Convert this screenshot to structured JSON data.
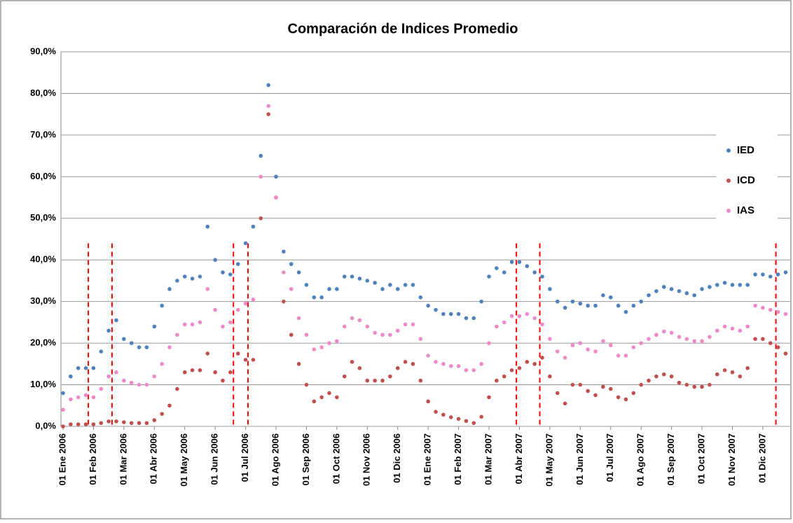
{
  "chart_data": {
    "type": "scatter",
    "title": "Comparación de Indices Promedio",
    "x": [
      0,
      0.25,
      0.5,
      0.75,
      1,
      1.25,
      1.5,
      1.75,
      2,
      2.25,
      2.5,
      2.75,
      3,
      3.25,
      3.5,
      3.75,
      4,
      4.25,
      4.5,
      4.75,
      5,
      5.25,
      5.5,
      5.75,
      6,
      6.25,
      6.5,
      6.75,
      7,
      7.25,
      7.5,
      7.75,
      8,
      8.25,
      8.5,
      8.75,
      9,
      9.25,
      9.5,
      9.75,
      10,
      10.25,
      10.5,
      10.75,
      11,
      11.25,
      11.5,
      11.75,
      12,
      12.25,
      12.5,
      12.75,
      13,
      13.25,
      13.5,
      13.75,
      14,
      14.25,
      14.5,
      14.75,
      15,
      15.25,
      15.5,
      15.75,
      16,
      16.25,
      16.5,
      16.75,
      17,
      17.25,
      17.5,
      17.75,
      18,
      18.25,
      18.5,
      18.75,
      19,
      19.25,
      19.5,
      19.75,
      20,
      20.25,
      20.5,
      20.75,
      21,
      21.25,
      21.5,
      21.75,
      22,
      22.25,
      22.5,
      22.75,
      23,
      23.25,
      23.5,
      23.75
    ],
    "series": [
      {
        "name": "IED",
        "color": "#4f81bd",
        "values": [
          8,
          12,
          14,
          14,
          14,
          18,
          23,
          25.5,
          21,
          20,
          19,
          19,
          24,
          29,
          33,
          35,
          36,
          35.5,
          36,
          48,
          40,
          37,
          36.5,
          39,
          44,
          48,
          65,
          82,
          60,
          42,
          39,
          37,
          34,
          31,
          31,
          33,
          33,
          36,
          36,
          35.5,
          35,
          34.5,
          33,
          34,
          33,
          34,
          34,
          31,
          29,
          28,
          27,
          27,
          27,
          26,
          26,
          30,
          36,
          38,
          37,
          39.5,
          39.5,
          38.5,
          37,
          36,
          33,
          30,
          28.5,
          30,
          29.5,
          29,
          29,
          31.5,
          31,
          29,
          27.5,
          29,
          30,
          31.5,
          32.5,
          33.5,
          33,
          32.5,
          32,
          31.5,
          33,
          33.5,
          34,
          34.5,
          34,
          34,
          34,
          36.5,
          36.5,
          36,
          36.5,
          37
        ]
      },
      {
        "name": "ICD",
        "color": "#c0504d",
        "values": [
          0,
          0.5,
          0.5,
          0.5,
          0.5,
          0.8,
          1.2,
          1.2,
          1,
          0.8,
          0.8,
          0.8,
          1.5,
          3,
          5,
          9,
          13,
          13.5,
          13.5,
          17.5,
          13,
          11,
          13,
          17.5,
          16,
          16,
          50,
          75,
          55,
          30,
          22,
          15,
          10,
          6,
          7,
          8,
          7,
          12,
          15.5,
          14,
          11,
          11,
          11,
          12,
          14,
          15.5,
          15,
          11,
          6,
          3.5,
          2.8,
          2.2,
          1.8,
          1.3,
          0.8,
          2.3,
          7,
          11,
          12,
          13.5,
          14,
          15.5,
          15,
          16.5,
          12,
          8,
          5.5,
          10,
          10,
          8.5,
          7.5,
          9.5,
          9,
          7,
          6.5,
          8,
          10,
          11,
          12,
          12.5,
          12,
          10.5,
          10,
          9.5,
          9.5,
          10,
          12.5,
          13.5,
          13,
          12,
          14,
          21,
          21,
          20,
          19,
          17.5
        ]
      },
      {
        "name": "IAS",
        "color": "#ee8ac8",
        "values": [
          4,
          6.5,
          7,
          7.5,
          7,
          9,
          12,
          13,
          11,
          10.5,
          10,
          10,
          12,
          15,
          19,
          22,
          24.5,
          24.5,
          25,
          33,
          28,
          24,
          25,
          28,
          29.5,
          30.5,
          60,
          77,
          55,
          37,
          33,
          26,
          22,
          18.5,
          19,
          20,
          20.5,
          24,
          26,
          25.5,
          24,
          22.5,
          22,
          22,
          23,
          24.5,
          24.5,
          21,
          17,
          15.5,
          15,
          14.5,
          14.5,
          13.5,
          13.5,
          15,
          20,
          24,
          25,
          26.5,
          26.5,
          27,
          26,
          24.5,
          21,
          18,
          16.5,
          19.5,
          20,
          18.5,
          18,
          20.5,
          19.5,
          17,
          17,
          19,
          20,
          21,
          22,
          22.8,
          22.5,
          21.5,
          21,
          20.5,
          20.5,
          21.5,
          23,
          24,
          23.5,
          23,
          24,
          29,
          28.5,
          28,
          27.5,
          27
        ]
      }
    ],
    "xlim": [
      0,
      23.9
    ],
    "xticks": [
      {
        "value": 0,
        "label": "01 Ene 2006"
      },
      {
        "value": 1,
        "label": "01 Feb 2006"
      },
      {
        "value": 2,
        "label": "01 Mar 2006"
      },
      {
        "value": 3,
        "label": "01 Abr 2006"
      },
      {
        "value": 4,
        "label": "01 May 2006"
      },
      {
        "value": 5,
        "label": "01 Jun 2006"
      },
      {
        "value": 6,
        "label": "01 Jul 2006"
      },
      {
        "value": 7,
        "label": "01 Ago 2006"
      },
      {
        "value": 8,
        "label": "01 Sep 2006"
      },
      {
        "value": 9,
        "label": "01 Oct 2006"
      },
      {
        "value": 10,
        "label": "01 Nov 2006"
      },
      {
        "value": 11,
        "label": "01 Dic 2006"
      },
      {
        "value": 12,
        "label": "01 Ene 2007"
      },
      {
        "value": 13,
        "label": "01 Feb 2007"
      },
      {
        "value": 14,
        "label": "01 Mar 2007"
      },
      {
        "value": 15,
        "label": "01 Abr 2007"
      },
      {
        "value": 16,
        "label": "01 May 2007"
      },
      {
        "value": 17,
        "label": "01 Jun 2007"
      },
      {
        "value": 18,
        "label": "01 Jul 2007"
      },
      {
        "value": 19,
        "label": "01 Ago 2007"
      },
      {
        "value": 20,
        "label": "01 Sep 2007"
      },
      {
        "value": 21,
        "label": "01 Oct 2007"
      },
      {
        "value": 22,
        "label": "01 Nov 2007"
      },
      {
        "value": 23,
        "label": "01 Dic 2007"
      }
    ],
    "ylim": [
      0,
      90
    ],
    "yticks": [
      {
        "value": 0,
        "label": "0,0%"
      },
      {
        "value": 10,
        "label": "10,0%"
      },
      {
        "value": 20,
        "label": "20,0%"
      },
      {
        "value": 30,
        "label": "30,0%"
      },
      {
        "value": 40,
        "label": "40,0%"
      },
      {
        "value": 50,
        "label": "50,0%"
      },
      {
        "value": 60,
        "label": "60,0%"
      },
      {
        "value": 70,
        "label": "70,0%"
      },
      {
        "value": 80,
        "label": "80,0%"
      },
      {
        "value": 90,
        "label": "90,0%"
      }
    ],
    "grid": true,
    "legend": "right",
    "vlines": [
      0.83,
      1.61,
      5.6,
      6.08,
      14.9,
      15.67,
      23.43
    ],
    "vline_top": 44,
    "vline_color": "#ff0000"
  }
}
